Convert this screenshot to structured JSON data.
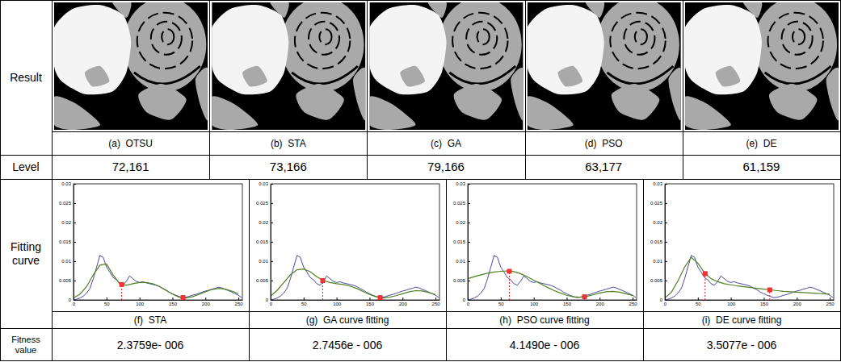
{
  "table": {
    "row_labels": [
      "Result",
      "Level",
      "Fitting curve",
      "Fitness value"
    ],
    "results": [
      {
        "caption": "(a)  OTSU",
        "level": "72,161"
      },
      {
        "caption": "(b)  STA",
        "level": "73,166"
      },
      {
        "caption": "(c)  GA",
        "level": "79,166"
      },
      {
        "caption": "(d)  PSO",
        "level": "63,177"
      },
      {
        "caption": "(e)  DE",
        "level": "61,159"
      }
    ],
    "fitness_values": [
      "2.3759e- 006",
      "2.7456e - 006",
      "4.1490e - 006",
      "3.5077e - 006"
    ]
  },
  "chart_data": [
    {
      "type": "line",
      "title": "(f)  STA",
      "xlim": [
        0,
        256
      ],
      "xticks": [
        0,
        50,
        100,
        150,
        200,
        250
      ],
      "ylim": [
        0,
        0.03
      ],
      "yticks": [
        0,
        0.005,
        0.01,
        0.015,
        0.02,
        0.025,
        0.03
      ],
      "series": [
        {
          "type": "line",
          "color": "#1a1a8c",
          "x": [
            0,
            5,
            10,
            15,
            20,
            25,
            30,
            35,
            40,
            45,
            50,
            55,
            60,
            65,
            70,
            75,
            80,
            85,
            90,
            95,
            100,
            105,
            110,
            115,
            120,
            125,
            130,
            135,
            140,
            145,
            150,
            155,
            160,
            165,
            170,
            175,
            180,
            185,
            190,
            195,
            200,
            205,
            210,
            215,
            220,
            225,
            230,
            235,
            240,
            245,
            250,
            255
          ],
          "values": [
            0,
            0.0002,
            0.0005,
            0.001,
            0.0018,
            0.003,
            0.0055,
            0.0085,
            0.0115,
            0.011,
            0.0085,
            0.0072,
            0.0058,
            0.0052,
            0.0042,
            0.0038,
            0.0048,
            0.0062,
            0.0055,
            0.0048,
            0.0045,
            0.0047,
            0.0044,
            0.0042,
            0.004,
            0.0038,
            0.0035,
            0.003,
            0.0026,
            0.002,
            0.0016,
            0.0012,
            0.0009,
            0.0006,
            0.0007,
            0.0009,
            0.0012,
            0.0014,
            0.0017,
            0.002,
            0.0023,
            0.0025,
            0.0028,
            0.003,
            0.0033,
            0.0031,
            0.0027,
            0.0024,
            0.002,
            0.0016,
            0.0012,
            0.0006
          ]
        },
        {
          "type": "line",
          "color": "#4f7f1f",
          "x": [
            0,
            10,
            20,
            30,
            40,
            50,
            60,
            70,
            80,
            90,
            100,
            110,
            120,
            130,
            140,
            150,
            160,
            170,
            180,
            190,
            200,
            210,
            220,
            230,
            240,
            250
          ],
          "values": [
            0.0005,
            0.0015,
            0.0035,
            0.0065,
            0.009,
            0.0093,
            0.0065,
            0.0042,
            0.0038,
            0.0042,
            0.0045,
            0.0045,
            0.0042,
            0.0035,
            0.0025,
            0.0015,
            0.0007,
            0.0005,
            0.0008,
            0.0014,
            0.0021,
            0.0027,
            0.003,
            0.0028,
            0.0023,
            0.0016
          ]
        },
        {
          "type": "scatter",
          "marker": "square",
          "line_style": "dashed",
          "color": "#e02020",
          "x": [
            73,
            166
          ],
          "values": [
            0.004,
            0.0006
          ]
        }
      ]
    },
    {
      "type": "line",
      "title": "(g)  GA curve fitting",
      "xlim": [
        0,
        256
      ],
      "xticks": [
        0,
        50,
        100,
        150,
        200,
        250
      ],
      "ylim": [
        0,
        0.03
      ],
      "yticks": [
        0,
        0.005,
        0.01,
        0.015,
        0.02,
        0.025,
        0.03
      ],
      "series": [
        {
          "type": "line",
          "color": "#1a1a8c",
          "x": [
            0,
            5,
            10,
            15,
            20,
            25,
            30,
            35,
            40,
            45,
            50,
            55,
            60,
            65,
            70,
            75,
            80,
            85,
            90,
            95,
            100,
            105,
            110,
            115,
            120,
            125,
            130,
            135,
            140,
            145,
            150,
            155,
            160,
            165,
            170,
            175,
            180,
            185,
            190,
            195,
            200,
            205,
            210,
            215,
            220,
            225,
            230,
            235,
            240,
            245,
            250,
            255
          ],
          "values": [
            0,
            0.0002,
            0.0005,
            0.001,
            0.0018,
            0.003,
            0.0055,
            0.0085,
            0.0115,
            0.011,
            0.0085,
            0.0072,
            0.0058,
            0.0052,
            0.0042,
            0.0038,
            0.0048,
            0.0062,
            0.0055,
            0.0048,
            0.0045,
            0.0047,
            0.0044,
            0.0042,
            0.004,
            0.0038,
            0.0035,
            0.003,
            0.0026,
            0.002,
            0.0016,
            0.0012,
            0.0009,
            0.0006,
            0.0007,
            0.0009,
            0.0012,
            0.0014,
            0.0017,
            0.002,
            0.0023,
            0.0025,
            0.0028,
            0.003,
            0.0033,
            0.0031,
            0.0027,
            0.0024,
            0.002,
            0.0016,
            0.0012,
            0.0006
          ]
        },
        {
          "type": "line",
          "color": "#4f7f1f",
          "x": [
            0,
            10,
            20,
            30,
            40,
            50,
            60,
            70,
            80,
            90,
            100,
            110,
            120,
            130,
            140,
            150,
            160,
            170,
            180,
            190,
            200,
            210,
            220,
            230,
            240,
            250
          ],
          "values": [
            0.001,
            0.0025,
            0.0045,
            0.0065,
            0.0078,
            0.008,
            0.0073,
            0.006,
            0.005,
            0.0045,
            0.0042,
            0.004,
            0.0036,
            0.003,
            0.0022,
            0.0014,
            0.0008,
            0.0005,
            0.0007,
            0.0011,
            0.0016,
            0.0021,
            0.0024,
            0.0023,
            0.0019,
            0.0014
          ]
        },
        {
          "type": "scatter",
          "marker": "square",
          "line_style": "dashed",
          "color": "#e02020",
          "x": [
            79,
            166
          ],
          "values": [
            0.005,
            0.0006
          ]
        }
      ]
    },
    {
      "type": "line",
      "title": "(h)  PSO curve fitting",
      "xlim": [
        0,
        256
      ],
      "xticks": [
        0,
        50,
        100,
        150,
        200,
        250
      ],
      "ylim": [
        0,
        0.03
      ],
      "yticks": [
        0,
        0.005,
        0.01,
        0.015,
        0.02,
        0.025,
        0.03
      ],
      "series": [
        {
          "type": "line",
          "color": "#1a1a8c",
          "x": [
            0,
            5,
            10,
            15,
            20,
            25,
            30,
            35,
            40,
            45,
            50,
            55,
            60,
            65,
            70,
            75,
            80,
            85,
            90,
            95,
            100,
            105,
            110,
            115,
            120,
            125,
            130,
            135,
            140,
            145,
            150,
            155,
            160,
            165,
            170,
            175,
            180,
            185,
            190,
            195,
            200,
            205,
            210,
            215,
            220,
            225,
            230,
            235,
            240,
            245,
            250,
            255
          ],
          "values": [
            0,
            0.0002,
            0.0005,
            0.001,
            0.0018,
            0.003,
            0.0055,
            0.0085,
            0.0115,
            0.011,
            0.0085,
            0.0072,
            0.0058,
            0.0052,
            0.0042,
            0.0038,
            0.0048,
            0.0062,
            0.0055,
            0.0048,
            0.0045,
            0.0047,
            0.0044,
            0.0042,
            0.004,
            0.0038,
            0.0035,
            0.003,
            0.0026,
            0.002,
            0.0016,
            0.0012,
            0.0009,
            0.0006,
            0.0007,
            0.0009,
            0.0012,
            0.0014,
            0.0017,
            0.002,
            0.0023,
            0.0025,
            0.0028,
            0.003,
            0.0033,
            0.0031,
            0.0027,
            0.0024,
            0.002,
            0.0016,
            0.0012,
            0.0006
          ]
        },
        {
          "type": "line",
          "color": "#4f7f1f",
          "x": [
            0,
            10,
            20,
            30,
            40,
            50,
            60,
            70,
            80,
            90,
            100,
            110,
            120,
            130,
            140,
            150,
            160,
            170,
            180,
            190,
            200,
            210,
            220,
            230,
            240,
            250
          ],
          "values": [
            0.0055,
            0.006,
            0.0065,
            0.0069,
            0.0072,
            0.0074,
            0.0075,
            0.0073,
            0.0068,
            0.006,
            0.0051,
            0.0042,
            0.0033,
            0.0025,
            0.0018,
            0.0012,
            0.0008,
            0.0007,
            0.0009,
            0.0013,
            0.0018,
            0.0021,
            0.0022,
            0.002,
            0.0016,
            0.0011
          ]
        },
        {
          "type": "scatter",
          "marker": "square",
          "line_style": "dashed",
          "color": "#e02020",
          "x": [
            63,
            177
          ],
          "values": [
            0.0074,
            0.0008
          ]
        }
      ]
    },
    {
      "type": "line",
      "title": "(i)  DE curve fitting",
      "xlim": [
        0,
        256
      ],
      "xticks": [
        0,
        50,
        100,
        150,
        200,
        250
      ],
      "ylim": [
        0,
        0.03
      ],
      "yticks": [
        0,
        0.005,
        0.01,
        0.015,
        0.02,
        0.025,
        0.03
      ],
      "series": [
        {
          "type": "line",
          "color": "#1a1a8c",
          "x": [
            0,
            5,
            10,
            15,
            20,
            25,
            30,
            35,
            40,
            45,
            50,
            55,
            60,
            65,
            70,
            75,
            80,
            85,
            90,
            95,
            100,
            105,
            110,
            115,
            120,
            125,
            130,
            135,
            140,
            145,
            150,
            155,
            160,
            165,
            170,
            175,
            180,
            185,
            190,
            195,
            200,
            205,
            210,
            215,
            220,
            225,
            230,
            235,
            240,
            245,
            250,
            255
          ],
          "values": [
            0,
            0.0002,
            0.0005,
            0.001,
            0.0018,
            0.003,
            0.0055,
            0.0085,
            0.0115,
            0.011,
            0.0085,
            0.0072,
            0.0058,
            0.0052,
            0.0042,
            0.0038,
            0.0048,
            0.0062,
            0.0055,
            0.0048,
            0.0045,
            0.0047,
            0.0044,
            0.0042,
            0.004,
            0.0038,
            0.0035,
            0.003,
            0.0026,
            0.002,
            0.0016,
            0.0012,
            0.0009,
            0.0006,
            0.0007,
            0.0009,
            0.0012,
            0.0014,
            0.0017,
            0.002,
            0.0023,
            0.0025,
            0.0028,
            0.003,
            0.0033,
            0.0031,
            0.0027,
            0.0024,
            0.002,
            0.0016,
            0.0012,
            0.0006
          ]
        },
        {
          "type": "line",
          "color": "#4f7f1f",
          "x": [
            0,
            10,
            20,
            30,
            40,
            50,
            60,
            70,
            80,
            90,
            100,
            110,
            120,
            130,
            140,
            150,
            160,
            170,
            180,
            190,
            200,
            210,
            220,
            230,
            240,
            250
          ],
          "values": [
            0.0005,
            0.002,
            0.005,
            0.0085,
            0.011,
            0.0095,
            0.007,
            0.0055,
            0.0047,
            0.0042,
            0.0039,
            0.0036,
            0.0034,
            0.0032,
            0.003,
            0.0028,
            0.0026,
            0.0024,
            0.0022,
            0.0021,
            0.002,
            0.0019,
            0.0018,
            0.0017,
            0.0016,
            0.0015
          ]
        },
        {
          "type": "scatter",
          "marker": "square",
          "line_style": "dashed",
          "color": "#e02020",
          "x": [
            61,
            159
          ],
          "values": [
            0.0068,
            0.0026
          ]
        }
      ]
    }
  ]
}
